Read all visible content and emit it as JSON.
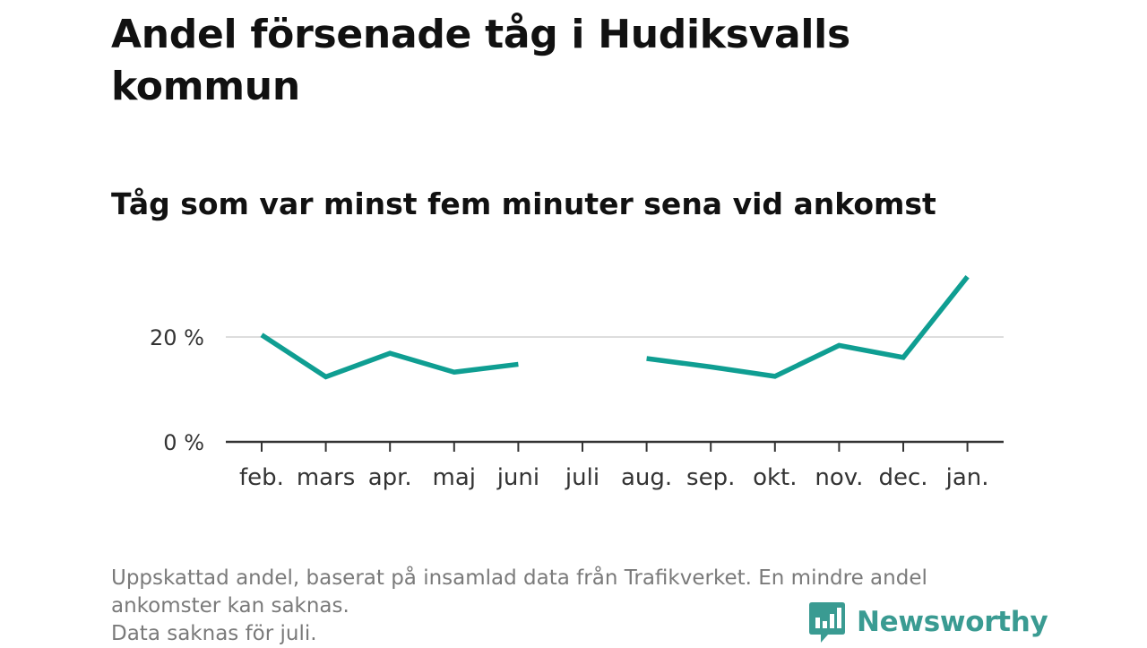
{
  "title": "Andel försenade tåg i Hudiksvalls kommun",
  "subtitle": "Tåg som var minst fem minuter sena vid ankomst",
  "chart_data": {
    "type": "line",
    "categories": [
      "feb.",
      "mars",
      "apr.",
      "maj",
      "juni",
      "juli",
      "aug.",
      "sep.",
      "okt.",
      "nov.",
      "dec.",
      "jan."
    ],
    "series": [
      {
        "values": [
          20.4,
          12.4,
          16.9,
          13.3,
          14.8,
          null,
          15.9,
          14.3,
          12.5,
          18.4,
          16.1,
          31.5
        ]
      }
    ],
    "yticks": [
      {
        "value": 0,
        "label": "0 %"
      },
      {
        "value": 20,
        "label": "20 %"
      }
    ],
    "ylim": [
      0,
      33
    ],
    "grid": true,
    "line_color": "#0f9e92",
    "grid_color": "#dddddd",
    "axis_color": "#333333"
  },
  "footnote": {
    "lines": [
      "Uppskattad andel, baserat på insamlad data från Trafikverket. En mindre andel",
      "ankomster kan saknas.",
      "Data saknas för juli."
    ]
  },
  "brand": {
    "name": "Newsworthy",
    "icon": "newsworthy-logo-icon",
    "color": "#3a9b92"
  }
}
